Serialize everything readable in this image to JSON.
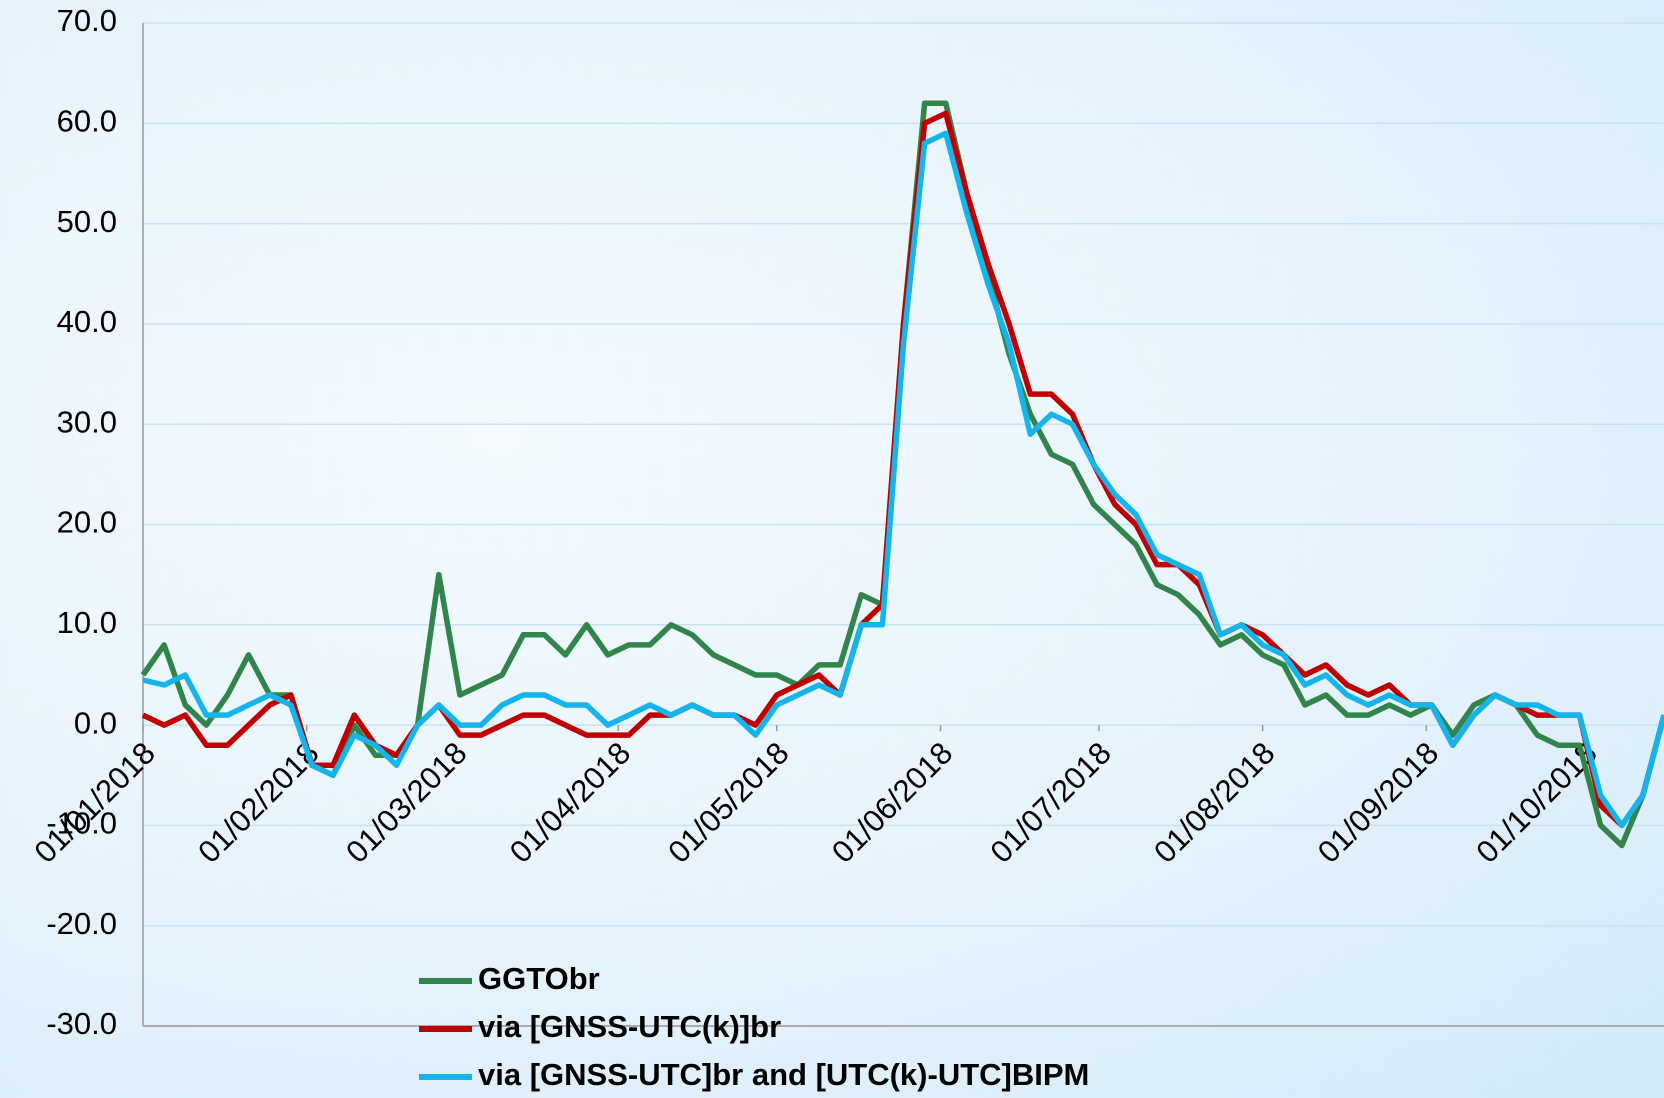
{
  "chart_data": {
    "type": "line",
    "x": [
      "01/01/2018",
      "05/01/2018",
      "09/01/2018",
      "13/01/2018",
      "17/01/2018",
      "21/01/2018",
      "25/01/2018",
      "29/01/2018",
      "02/02/2018",
      "06/02/2018",
      "10/02/2018",
      "14/02/2018",
      "18/02/2018",
      "22/02/2018",
      "26/02/2018",
      "02/03/2018",
      "06/03/2018",
      "10/03/2018",
      "14/03/2018",
      "18/03/2018",
      "22/03/2018",
      "26/03/2018",
      "30/03/2018",
      "03/04/2018",
      "07/04/2018",
      "11/04/2018",
      "15/04/2018",
      "19/04/2018",
      "23/04/2018",
      "27/04/2018",
      "01/05/2018",
      "05/05/2018",
      "09/05/2018",
      "13/05/2018",
      "17/05/2018",
      "21/05/2018",
      "25/05/2018",
      "29/05/2018",
      "02/06/2018",
      "06/06/2018",
      "10/06/2018",
      "14/06/2018",
      "18/06/2018",
      "22/06/2018",
      "26/06/2018",
      "30/06/2018",
      "04/07/2018",
      "08/07/2018",
      "12/07/2018",
      "16/07/2018",
      "20/07/2018",
      "24/07/2018",
      "28/07/2018",
      "01/08/2018",
      "05/08/2018",
      "09/08/2018",
      "13/08/2018",
      "17/08/2018",
      "21/08/2018",
      "25/08/2018",
      "29/08/2018",
      "02/09/2018",
      "06/09/2018",
      "10/09/2018",
      "14/09/2018",
      "18/09/2018",
      "22/09/2018",
      "26/09/2018",
      "30/09/2018",
      "04/10/2018",
      "08/10/2018",
      "12/10/2018",
      "16/10/2018"
    ],
    "series": [
      {
        "name": "GGTObr",
        "color": "#31844a",
        "values": [
          5,
          8,
          2,
          0,
          3,
          7,
          3,
          3,
          -4,
          -5,
          0,
          -3,
          -3,
          0,
          15,
          3,
          4,
          5,
          9,
          9,
          7,
          10,
          7,
          8,
          8,
          10,
          9,
          7,
          6,
          5,
          5,
          4,
          6,
          6,
          13,
          12,
          40,
          62,
          62,
          53,
          45,
          37,
          31,
          27,
          26,
          22,
          20,
          18,
          14,
          13,
          11,
          8,
          9,
          7,
          6,
          2,
          3,
          1,
          1,
          2,
          1,
          2,
          -1,
          2,
          3,
          2,
          -1,
          -2,
          -2,
          -10,
          -12,
          -7,
          1
        ]
      },
      {
        "name": "via [GNSS-UTC(k)]br",
        "color": "#c00000",
        "values": [
          1,
          0,
          1,
          -2,
          -2,
          0,
          2,
          3,
          -4,
          -4,
          1,
          -2,
          -3,
          0,
          2,
          -1,
          -1,
          0,
          1,
          1,
          0,
          -1,
          -1,
          -1,
          1,
          1,
          2,
          1,
          1,
          0,
          3,
          4,
          5,
          3,
          10,
          12,
          40,
          60,
          61,
          53,
          46,
          40,
          33,
          33,
          31,
          26,
          22,
          20,
          16,
          16,
          14,
          9,
          10,
          9,
          7,
          5,
          6,
          4,
          3,
          4,
          2,
          2,
          -2,
          1,
          3,
          2,
          1,
          1,
          1,
          -8,
          -10,
          -7,
          1
        ]
      },
      {
        "name": "via [GNSS-UTC]br and [UTC(k)-UTC]BIPM",
        "color": "#14b4ec",
        "values": [
          4.5,
          4,
          5,
          1,
          1,
          2,
          3,
          2,
          -4,
          -5,
          -1,
          -2,
          -4,
          0,
          2,
          0,
          0,
          2,
          3,
          3,
          2,
          2,
          0,
          1,
          2,
          1,
          2,
          1,
          1,
          -1,
          2,
          3,
          4,
          3,
          10,
          10,
          38,
          58,
          59,
          51,
          44,
          38,
          29,
          31,
          30,
          26,
          23,
          21,
          17,
          16,
          15,
          9,
          10,
          8,
          7,
          4,
          5,
          3,
          2,
          3,
          2,
          2,
          -2,
          1,
          3,
          2,
          2,
          1,
          1,
          -7,
          -10,
          -7,
          1
        ]
      }
    ],
    "xlim": [
      "01/01/2018",
      "16/10/2018"
    ],
    "xticks": [
      "01/01/2018",
      "01/02/2018",
      "01/03/2018",
      "01/04/2018",
      "01/05/2018",
      "01/06/2018",
      "01/07/2018",
      "01/08/2018",
      "01/09/2018",
      "01/10/2018"
    ],
    "ylim": [
      -30,
      70
    ],
    "yticks": [
      {
        "value": -30,
        "label": "-30.0"
      },
      {
        "value": -20,
        "label": "-20.0"
      },
      {
        "value": -10,
        "label": "-10.0"
      },
      {
        "value": 0,
        "label": "0.0"
      },
      {
        "value": 10,
        "label": "10.0"
      },
      {
        "value": 20,
        "label": "20.0"
      },
      {
        "value": 30,
        "label": "30.0"
      },
      {
        "value": 40,
        "label": "40.0"
      },
      {
        "value": 50,
        "label": "50.0"
      },
      {
        "value": 60,
        "label": "60.0"
      },
      {
        "value": 70,
        "label": "70.0"
      }
    ],
    "grid": true
  }
}
